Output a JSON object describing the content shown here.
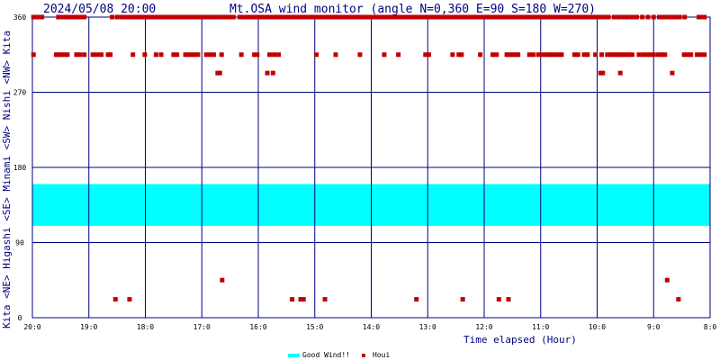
{
  "chart_data": {
    "type": "scatter",
    "timestamp": "2024/05/08 20:00",
    "title": "Mt.OSA wind monitor (angle N=0,360 E=90 S=180 W=270)",
    "xlabel": "Time elapsed (Hour)",
    "ylabel_parts": [
      "Kita",
      "<NE>",
      "Higashi",
      "<SE>",
      "Minami",
      "<SW>",
      "Nishi",
      "<NW>",
      "Kita"
    ],
    "x_ticks": [
      "20:0",
      "19:0",
      "18:0",
      "17:0",
      "16:0",
      "15:0",
      "14:0",
      "13:0",
      "12:0",
      "11:0",
      "10:0",
      "9:0",
      "8:0"
    ],
    "y_ticks": [
      0,
      90,
      180,
      270,
      360
    ],
    "ylim": [
      0,
      360
    ],
    "xlim_hours_elapsed": [
      0,
      12
    ],
    "good_wind": {
      "name": "Good Wind!!",
      "range": [
        160,
        110
      ],
      "color": "#00ffff"
    },
    "series": [
      {
        "name": "Houi",
        "color": "#c00000",
        "points": [
          [
            0.02,
            360
          ],
          [
            0.05,
            360
          ],
          [
            0.09,
            360
          ],
          [
            0.14,
            360
          ],
          [
            0.17,
            360
          ],
          [
            0.46,
            360
          ],
          [
            0.54,
            360
          ],
          [
            0.58,
            360
          ],
          [
            0.63,
            360
          ],
          [
            0.68,
            360
          ],
          [
            0.73,
            360
          ],
          [
            0.76,
            360
          ],
          [
            0.8,
            360
          ],
          [
            0.84,
            360
          ],
          [
            0.88,
            360
          ],
          [
            0.92,
            360
          ],
          [
            1.41,
            360
          ],
          [
            1.5,
            360
          ],
          [
            1.58,
            360
          ],
          [
            1.65,
            360
          ],
          [
            1.71,
            360
          ],
          [
            1.78,
            360
          ],
          [
            1.83,
            360
          ],
          [
            1.88,
            360
          ],
          [
            1.94,
            360
          ],
          [
            1.99,
            360
          ],
          [
            2.04,
            360
          ],
          [
            2.1,
            360
          ],
          [
            2.15,
            360
          ],
          [
            2.21,
            360
          ],
          [
            2.28,
            360
          ],
          [
            2.33,
            360
          ],
          [
            2.38,
            360
          ],
          [
            2.44,
            360
          ],
          [
            2.5,
            360
          ],
          [
            2.56,
            360
          ],
          [
            2.61,
            360
          ],
          [
            2.67,
            360
          ],
          [
            2.73,
            360
          ],
          [
            2.78,
            360
          ],
          [
            2.84,
            360
          ],
          [
            2.9,
            360
          ],
          [
            2.96,
            360
          ],
          [
            3.02,
            360
          ],
          [
            3.08,
            360
          ],
          [
            3.14,
            360
          ],
          [
            3.22,
            360
          ],
          [
            3.3,
            360
          ],
          [
            3.38,
            360
          ],
          [
            3.45,
            360
          ],
          [
            3.51,
            360
          ],
          [
            3.56,
            360
          ],
          [
            3.67,
            360
          ],
          [
            3.73,
            360
          ],
          [
            3.8,
            360
          ],
          [
            3.86,
            360
          ],
          [
            3.92,
            360
          ],
          [
            3.98,
            360
          ],
          [
            4.03,
            360
          ],
          [
            4.09,
            360
          ],
          [
            4.16,
            360
          ],
          [
            4.22,
            360
          ],
          [
            4.28,
            360
          ],
          [
            4.33,
            360
          ],
          [
            4.39,
            360
          ],
          [
            4.46,
            360
          ],
          [
            4.52,
            360
          ],
          [
            4.58,
            360
          ],
          [
            4.64,
            360
          ],
          [
            4.71,
            360
          ],
          [
            4.77,
            360
          ],
          [
            4.84,
            360
          ],
          [
            4.9,
            360
          ],
          [
            4.97,
            360
          ],
          [
            5.03,
            360
          ],
          [
            5.09,
            360
          ],
          [
            5.15,
            360
          ],
          [
            5.22,
            360
          ],
          [
            5.28,
            360
          ],
          [
            5.34,
            360
          ],
          [
            5.41,
            360
          ],
          [
            5.47,
            360
          ],
          [
            5.53,
            360
          ],
          [
            5.6,
            360
          ],
          [
            5.66,
            360
          ],
          [
            5.73,
            360
          ],
          [
            5.79,
            360
          ],
          [
            5.86,
            360
          ],
          [
            5.92,
            360
          ],
          [
            5.99,
            360
          ],
          [
            6.06,
            360
          ],
          [
            6.12,
            360
          ],
          [
            6.19,
            360
          ],
          [
            6.26,
            360
          ],
          [
            6.32,
            360
          ],
          [
            6.39,
            360
          ],
          [
            6.46,
            360
          ],
          [
            6.52,
            360
          ],
          [
            6.59,
            360
          ],
          [
            6.66,
            360
          ],
          [
            6.72,
            360
          ],
          [
            6.79,
            360
          ],
          [
            6.85,
            360
          ],
          [
            6.92,
            360
          ],
          [
            6.99,
            360
          ],
          [
            7.05,
            360
          ],
          [
            7.12,
            360
          ],
          [
            7.18,
            360
          ],
          [
            7.24,
            360
          ],
          [
            7.3,
            360
          ],
          [
            7.36,
            360
          ],
          [
            7.43,
            360
          ],
          [
            7.5,
            360
          ],
          [
            7.56,
            360
          ],
          [
            7.62,
            360
          ],
          [
            7.68,
            360
          ],
          [
            7.74,
            360
          ],
          [
            7.8,
            360
          ],
          [
            7.86,
            360
          ],
          [
            7.92,
            360
          ],
          [
            7.98,
            360
          ],
          [
            8.04,
            360
          ],
          [
            8.1,
            360
          ],
          [
            8.16,
            360
          ],
          [
            8.22,
            360
          ],
          [
            8.28,
            360
          ],
          [
            8.34,
            360
          ],
          [
            8.4,
            360
          ],
          [
            8.46,
            360
          ],
          [
            8.52,
            360
          ],
          [
            8.58,
            360
          ],
          [
            8.64,
            360
          ],
          [
            8.7,
            360
          ],
          [
            8.76,
            360
          ],
          [
            8.82,
            360
          ],
          [
            8.88,
            360
          ],
          [
            8.94,
            360
          ],
          [
            9.0,
            360
          ],
          [
            9.06,
            360
          ],
          [
            9.12,
            360
          ],
          [
            9.18,
            360
          ],
          [
            9.24,
            360
          ],
          [
            9.3,
            360
          ],
          [
            9.36,
            360
          ],
          [
            9.43,
            360
          ],
          [
            9.5,
            360
          ],
          [
            9.57,
            360
          ],
          [
            9.64,
            360
          ],
          [
            9.7,
            360
          ],
          [
            9.76,
            360
          ],
          [
            9.83,
            360
          ],
          [
            9.9,
            360
          ],
          [
            9.97,
            360
          ],
          [
            10.04,
            360
          ],
          [
            10.12,
            360
          ],
          [
            10.2,
            360
          ],
          [
            10.3,
            360
          ],
          [
            10.38,
            360
          ],
          [
            10.46,
            360
          ],
          [
            10.54,
            360
          ],
          [
            10.62,
            360
          ],
          [
            10.7,
            360
          ],
          [
            10.8,
            360
          ],
          [
            10.9,
            360
          ],
          [
            11.0,
            360
          ],
          [
            11.1,
            360
          ],
          [
            11.18,
            360
          ],
          [
            11.24,
            360
          ],
          [
            11.32,
            360
          ],
          [
            11.39,
            360
          ],
          [
            11.46,
            360
          ],
          [
            11.55,
            360
          ],
          [
            11.8,
            360
          ],
          [
            11.86,
            360
          ],
          [
            11.9,
            360
          ],
          [
            0.02,
            315
          ],
          [
            0.42,
            315
          ],
          [
            0.47,
            315
          ],
          [
            0.52,
            315
          ],
          [
            0.57,
            315
          ],
          [
            0.62,
            315
          ],
          [
            0.78,
            315
          ],
          [
            0.84,
            315
          ],
          [
            0.92,
            315
          ],
          [
            1.07,
            315
          ],
          [
            1.14,
            315
          ],
          [
            1.22,
            315
          ],
          [
            1.34,
            315
          ],
          [
            1.38,
            315
          ],
          [
            1.78,
            315
          ],
          [
            1.99,
            315
          ],
          [
            2.19,
            315
          ],
          [
            2.28,
            315
          ],
          [
            2.5,
            315
          ],
          [
            2.56,
            315
          ],
          [
            2.71,
            315
          ],
          [
            2.77,
            315
          ],
          [
            2.82,
            315
          ],
          [
            2.87,
            315
          ],
          [
            2.93,
            315
          ],
          [
            3.08,
            315
          ],
          [
            3.15,
            315
          ],
          [
            3.21,
            315
          ],
          [
            3.35,
            315
          ],
          [
            3.7,
            315
          ],
          [
            3.93,
            315
          ],
          [
            3.98,
            315
          ],
          [
            4.2,
            315
          ],
          [
            4.28,
            315
          ],
          [
            4.36,
            315
          ],
          [
            5.03,
            315
          ],
          [
            5.37,
            315
          ],
          [
            5.8,
            315
          ],
          [
            6.23,
            315
          ],
          [
            6.48,
            315
          ],
          [
            6.96,
            315
          ],
          [
            7.02,
            315
          ],
          [
            7.44,
            315
          ],
          [
            7.55,
            315
          ],
          [
            7.6,
            315
          ],
          [
            7.93,
            315
          ],
          [
            8.15,
            315
          ],
          [
            8.22,
            315
          ],
          [
            8.4,
            315
          ],
          [
            8.45,
            315
          ],
          [
            8.5,
            315
          ],
          [
            8.55,
            315
          ],
          [
            8.6,
            315
          ],
          [
            8.8,
            315
          ],
          [
            8.87,
            315
          ],
          [
            8.96,
            315
          ],
          [
            9.02,
            315
          ],
          [
            9.1,
            315
          ],
          [
            9.15,
            315
          ],
          [
            9.2,
            315
          ],
          [
            9.27,
            315
          ],
          [
            9.32,
            315
          ],
          [
            9.37,
            315
          ],
          [
            9.6,
            315
          ],
          [
            9.66,
            315
          ],
          [
            9.77,
            315
          ],
          [
            9.83,
            315
          ],
          [
            9.97,
            315
          ],
          [
            10.08,
            315
          ],
          [
            10.18,
            315
          ],
          [
            10.24,
            315
          ],
          [
            10.3,
            315
          ],
          [
            10.35,
            315
          ],
          [
            10.4,
            315
          ],
          [
            10.45,
            315
          ],
          [
            10.5,
            315
          ],
          [
            10.55,
            315
          ],
          [
            10.62,
            315
          ],
          [
            10.74,
            315
          ],
          [
            10.82,
            315
          ],
          [
            10.88,
            315
          ],
          [
            10.94,
            315
          ],
          [
            11.0,
            315
          ],
          [
            11.08,
            315
          ],
          [
            11.15,
            315
          ],
          [
            11.2,
            315
          ],
          [
            11.54,
            315
          ],
          [
            11.6,
            315
          ],
          [
            11.66,
            315
          ],
          [
            11.77,
            315
          ],
          [
            11.84,
            315
          ],
          [
            11.9,
            315
          ],
          [
            3.28,
            293
          ],
          [
            3.32,
            293
          ],
          [
            4.16,
            293
          ],
          [
            4.26,
            293
          ],
          [
            10.06,
            293
          ],
          [
            10.1,
            293
          ],
          [
            10.41,
            293
          ],
          [
            11.33,
            293
          ],
          [
            3.36,
            45
          ],
          [
            11.24,
            45
          ],
          [
            1.47,
            22
          ],
          [
            1.72,
            22
          ],
          [
            4.6,
            22
          ],
          [
            4.75,
            22
          ],
          [
            4.8,
            22
          ],
          [
            5.18,
            22
          ],
          [
            6.8,
            22
          ],
          [
            7.62,
            22
          ],
          [
            8.26,
            22
          ],
          [
            8.43,
            22
          ],
          [
            11.44,
            22
          ]
        ]
      }
    ]
  }
}
